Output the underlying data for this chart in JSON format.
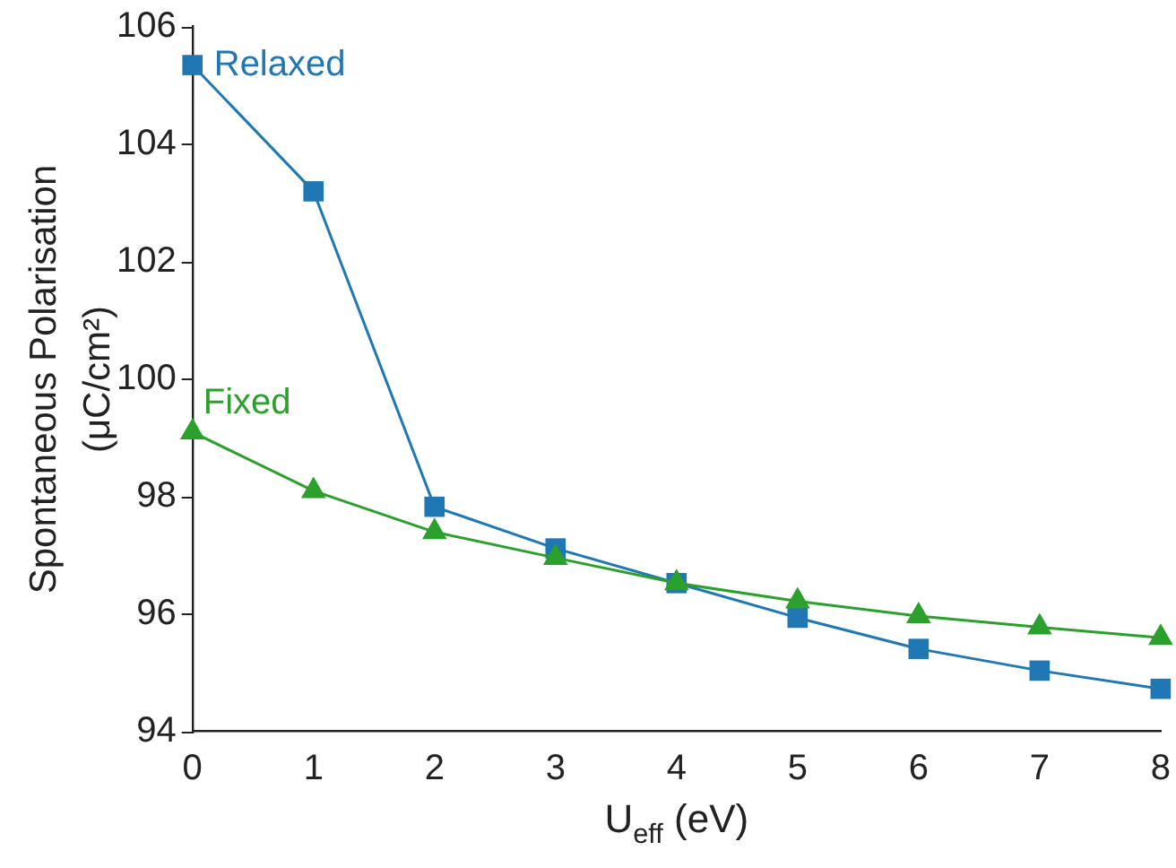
{
  "chart_data": {
    "type": "line",
    "xlabel": "U$_{eff}$ (eV)",
    "ylabel": "Spontaneous Polarisation (μC/cm²)",
    "x": [
      0,
      1,
      2,
      3,
      4,
      5,
      6,
      7,
      8
    ],
    "series": [
      {
        "name": "Relaxed",
        "color": "#1f77b4",
        "marker": "square",
        "values": [
          105.35,
          103.2,
          97.83,
          97.12,
          96.53,
          95.94,
          95.41,
          95.04,
          94.73
        ]
      },
      {
        "name": "Fixed",
        "color": "#2ca02c",
        "marker": "triangle",
        "values": [
          99.1,
          98.1,
          97.4,
          96.96,
          96.53,
          96.22,
          95.97,
          95.78,
          95.6
        ]
      }
    ],
    "xlim": [
      0,
      8
    ],
    "xticks": [
      0,
      1,
      2,
      3,
      4,
      5,
      6,
      7,
      8
    ],
    "ylim": [
      94,
      106
    ],
    "yticks": [
      94,
      96,
      98,
      100,
      102,
      104,
      106
    ],
    "grid": false,
    "legend": false
  }
}
